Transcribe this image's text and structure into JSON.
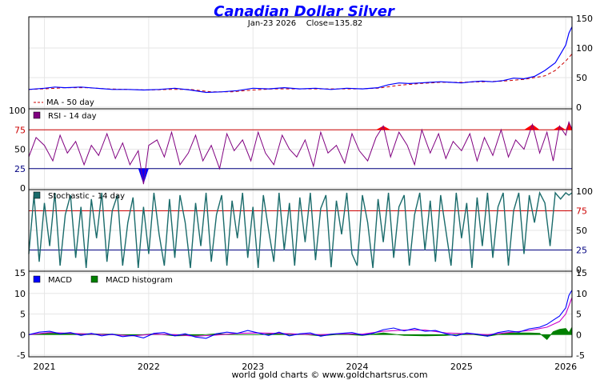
{
  "title": "Canadian Dollar Silver",
  "subtitle": {
    "date": "Jan-23  2026",
    "close_label": "Close=135.82"
  },
  "footer": "world gold charts © www.goldchartsrus.com",
  "x_axis": {
    "range": [
      2020.85,
      2026.06
    ],
    "year_labels": [
      "2021",
      "2022",
      "2023",
      "2024",
      "2025",
      "2026"
    ],
    "year_values": [
      2021,
      2022,
      2023,
      2024,
      2025,
      2026
    ]
  },
  "colors": {
    "price": "#0000ff",
    "ma": "#cc0000",
    "rsi": "#800080",
    "rsi_overbought": "#ff0000",
    "rsi_oversold": "#0000ff",
    "stoch": "#1a6b6b",
    "macd": "#0000ff",
    "macd_signal": "#cc00cc",
    "macd_hist": "#008000",
    "level_high": "#cc0000",
    "level_low": "#000080",
    "grid": "#e6e6e6"
  },
  "chart_data": [
    {
      "type": "line",
      "panel": "price",
      "title": "Canadian Dollar Silver",
      "y_ticks": [
        0,
        50,
        100,
        150
      ],
      "ylim": [
        0,
        150
      ],
      "legend": [
        {
          "name": "MA - 50 day",
          "color": "#cc0000",
          "style": "dashed"
        }
      ],
      "series": [
        {
          "name": "Price",
          "x": [
            2020.85,
            2021.0,
            2021.1,
            2021.2,
            2021.35,
            2021.5,
            2021.65,
            2021.8,
            2021.95,
            2022.1,
            2022.25,
            2022.4,
            2022.55,
            2022.7,
            2022.85,
            2023.0,
            2023.15,
            2023.3,
            2023.45,
            2023.6,
            2023.75,
            2023.9,
            2024.05,
            2024.2,
            2024.3,
            2024.4,
            2024.5,
            2024.6,
            2024.7,
            2024.8,
            2024.9,
            2025.0,
            2025.1,
            2025.2,
            2025.3,
            2025.4,
            2025.5,
            2025.6,
            2025.7,
            2025.8,
            2025.9,
            2025.95,
            2026.0,
            2026.03,
            2026.06
          ],
          "values": [
            30,
            32,
            34,
            33,
            34,
            32,
            30,
            30,
            29,
            30,
            32,
            29,
            25,
            26,
            28,
            32,
            31,
            33,
            31,
            32,
            30,
            32,
            31,
            33,
            38,
            41,
            40,
            41,
            42,
            43,
            42,
            41,
            43,
            44,
            43,
            45,
            49,
            48,
            52,
            62,
            75,
            90,
            105,
            125,
            135.82
          ]
        },
        {
          "name": "MA - 50 day",
          "x": [
            2020.85,
            2021.0,
            2021.2,
            2021.4,
            2021.6,
            2021.8,
            2022.0,
            2022.2,
            2022.4,
            2022.6,
            2022.8,
            2023.0,
            2023.2,
            2023.4,
            2023.6,
            2023.8,
            2024.0,
            2024.2,
            2024.4,
            2024.6,
            2024.8,
            2025.0,
            2025.2,
            2025.4,
            2025.6,
            2025.8,
            2025.9,
            2026.0,
            2026.06
          ],
          "values": [
            30,
            31,
            33,
            33,
            31,
            30,
            29,
            30,
            30,
            26,
            26,
            29,
            31,
            31,
            31,
            31,
            31,
            32,
            37,
            40,
            42,
            42,
            43,
            44,
            47,
            53,
            62,
            78,
            90
          ]
        }
      ]
    },
    {
      "type": "line",
      "panel": "rsi",
      "legend": [
        {
          "name": "RSI - 14 day",
          "color": "#800080"
        }
      ],
      "y_ticks": [
        0,
        25,
        50,
        75,
        100
      ],
      "ylim": [
        0,
        100
      ],
      "levels": [
        25,
        75
      ],
      "series": [
        {
          "name": "RSI - 14 day",
          "x": [
            2020.85,
            2020.92,
            2021.0,
            2021.08,
            2021.15,
            2021.22,
            2021.3,
            2021.38,
            2021.45,
            2021.52,
            2021.6,
            2021.68,
            2021.75,
            2021.82,
            2021.9,
            2021.95,
            2022.0,
            2022.08,
            2022.15,
            2022.22,
            2022.3,
            2022.38,
            2022.45,
            2022.52,
            2022.6,
            2022.68,
            2022.75,
            2022.82,
            2022.9,
            2022.98,
            2023.05,
            2023.12,
            2023.2,
            2023.28,
            2023.35,
            2023.42,
            2023.5,
            2023.58,
            2023.65,
            2023.72,
            2023.8,
            2023.88,
            2023.95,
            2024.02,
            2024.1,
            2024.18,
            2024.25,
            2024.32,
            2024.4,
            2024.48,
            2024.55,
            2024.62,
            2024.7,
            2024.78,
            2024.85,
            2024.92,
            2025.0,
            2025.08,
            2025.15,
            2025.22,
            2025.3,
            2025.38,
            2025.45,
            2025.52,
            2025.6,
            2025.68,
            2025.75,
            2025.82,
            2025.88,
            2025.94,
            2026.0,
            2026.03,
            2026.06
          ],
          "values": [
            40,
            65,
            55,
            35,
            68,
            45,
            60,
            30,
            55,
            42,
            70,
            38,
            58,
            30,
            48,
            5,
            55,
            62,
            40,
            72,
            30,
            45,
            68,
            35,
            55,
            25,
            70,
            48,
            62,
            35,
            72,
            45,
            30,
            68,
            50,
            40,
            62,
            28,
            72,
            45,
            55,
            32,
            70,
            48,
            35,
            65,
            80,
            40,
            72,
            55,
            30,
            75,
            45,
            70,
            38,
            60,
            48,
            70,
            35,
            65,
            42,
            75,
            40,
            62,
            50,
            82,
            45,
            72,
            35,
            80,
            68,
            85,
            76
          ]
        }
      ]
    },
    {
      "type": "line",
      "panel": "stochastic",
      "legend": [
        {
          "name": "Stochastic - 14 day",
          "color": "#1a6b6b"
        }
      ],
      "y_ticks": [
        0,
        25,
        50,
        75,
        100
      ],
      "ylim": [
        0,
        100
      ],
      "levels": [
        25,
        75
      ],
      "series": [
        {
          "name": "Stochastic - 14 day",
          "x": [
            2020.85,
            2020.9,
            2020.95,
            2021.0,
            2021.05,
            2021.1,
            2021.15,
            2021.2,
            2021.25,
            2021.3,
            2021.35,
            2021.4,
            2021.45,
            2021.5,
            2021.55,
            2021.6,
            2021.65,
            2021.7,
            2021.75,
            2021.8,
            2021.85,
            2021.9,
            2021.95,
            2022.0,
            2022.05,
            2022.1,
            2022.15,
            2022.2,
            2022.25,
            2022.3,
            2022.35,
            2022.4,
            2022.45,
            2022.5,
            2022.55,
            2022.6,
            2022.65,
            2022.7,
            2022.75,
            2022.8,
            2022.85,
            2022.9,
            2022.95,
            2023.0,
            2023.05,
            2023.1,
            2023.15,
            2023.2,
            2023.25,
            2023.3,
            2023.35,
            2023.4,
            2023.45,
            2023.5,
            2023.55,
            2023.6,
            2023.65,
            2023.7,
            2023.75,
            2023.8,
            2023.85,
            2023.9,
            2023.95,
            2024.0,
            2024.05,
            2024.1,
            2024.15,
            2024.2,
            2024.25,
            2024.3,
            2024.35,
            2024.4,
            2024.45,
            2024.5,
            2024.55,
            2024.6,
            2024.65,
            2024.7,
            2024.75,
            2024.8,
            2024.85,
            2024.9,
            2024.95,
            2025.0,
            2025.05,
            2025.1,
            2025.15,
            2025.2,
            2025.25,
            2025.3,
            2025.35,
            2025.4,
            2025.45,
            2025.5,
            2025.55,
            2025.6,
            2025.65,
            2025.7,
            2025.75,
            2025.8,
            2025.85,
            2025.9,
            2025.95,
            2026.0,
            2026.03,
            2026.06
          ],
          "values": [
            20,
            95,
            10,
            85,
            30,
            98,
            5,
            70,
            95,
            15,
            80,
            2,
            90,
            40,
            98,
            10,
            75,
            95,
            5,
            60,
            92,
            2,
            80,
            20,
            98,
            45,
            5,
            90,
            15,
            95,
            60,
            2,
            85,
            30,
            98,
            10,
            70,
            95,
            5,
            88,
            40,
            98,
            15,
            80,
            2,
            95,
            50,
            10,
            98,
            25,
            85,
            5,
            92,
            35,
            98,
            12,
            78,
            95,
            3,
            88,
            45,
            98,
            20,
            5,
            95,
            60,
            2,
            90,
            35,
            98,
            15,
            80,
            95,
            5,
            70,
            98,
            25,
            88,
            10,
            95,
            50,
            5,
            98,
            40,
            85,
            2,
            92,
            30,
            98,
            15,
            80,
            98,
            5,
            75,
            98,
            20,
            95,
            60,
            98,
            85,
            30,
            98,
            90,
            98,
            95,
            98
          ]
        }
      ]
    },
    {
      "type": "line",
      "panel": "macd",
      "legend": [
        {
          "name": "MACD",
          "color": "#0000ff"
        },
        {
          "name": "MACD histogram",
          "color": "#008000"
        }
      ],
      "y_ticks": [
        -5,
        0,
        5,
        10,
        15
      ],
      "ylim": [
        -5,
        15
      ],
      "series": [
        {
          "name": "MACD",
          "x": [
            2020.85,
            2020.95,
            2021.05,
            2021.15,
            2021.25,
            2021.35,
            2021.45,
            2021.55,
            2021.65,
            2021.75,
            2021.85,
            2021.95,
            2022.05,
            2022.15,
            2022.25,
            2022.35,
            2022.45,
            2022.55,
            2022.65,
            2022.75,
            2022.85,
            2022.95,
            2023.05,
            2023.15,
            2023.25,
            2023.35,
            2023.45,
            2023.55,
            2023.65,
            2023.75,
            2023.85,
            2023.95,
            2024.05,
            2024.15,
            2024.25,
            2024.35,
            2024.45,
            2024.55,
            2024.65,
            2024.75,
            2024.85,
            2024.95,
            2025.05,
            2025.15,
            2025.25,
            2025.35,
            2025.45,
            2025.55,
            2025.65,
            2025.75,
            2025.82,
            2025.88,
            2025.94,
            2026.0,
            2026.03,
            2026.06
          ],
          "values": [
            0,
            0.6,
            0.8,
            0.2,
            0.5,
            -0.2,
            0.3,
            -0.3,
            0.1,
            -0.5,
            -0.2,
            -0.8,
            0.3,
            0.5,
            -0.3,
            0.2,
            -0.6,
            -0.9,
            0.2,
            0.6,
            0.3,
            1.0,
            0.4,
            -0.2,
            0.6,
            -0.3,
            0.2,
            0.4,
            -0.4,
            0.1,
            0.3,
            0.5,
            -0.1,
            0.3,
            1.2,
            1.6,
            0.9,
            1.5,
            0.8,
            1.0,
            0.2,
            -0.3,
            0.4,
            0.1,
            -0.4,
            0.5,
            0.9,
            0.6,
            1.4,
            1.8,
            2.5,
            3.5,
            4.5,
            6.5,
            9.5,
            10.8
          ]
        },
        {
          "name": "Signal",
          "x": [
            2020.85,
            2021.05,
            2021.25,
            2021.45,
            2021.65,
            2021.85,
            2022.05,
            2022.25,
            2022.45,
            2022.65,
            2022.85,
            2023.05,
            2023.25,
            2023.45,
            2023.65,
            2023.85,
            2024.05,
            2024.25,
            2024.45,
            2024.65,
            2024.85,
            2025.05,
            2025.25,
            2025.45,
            2025.65,
            2025.82,
            2025.94,
            2026.0,
            2026.06
          ],
          "values": [
            0,
            0.5,
            0.3,
            0.1,
            0,
            -0.3,
            0.1,
            0,
            -0.4,
            -0.1,
            0.3,
            0.4,
            0.3,
            0.1,
            0,
            0.2,
            0.1,
            0.8,
            1.1,
            1.1,
            0.4,
            0.2,
            0,
            0.5,
            1.0,
            1.8,
            3.2,
            5.0,
            9.0
          ]
        },
        {
          "name": "MACD histogram",
          "x": [
            2020.85,
            2021.05,
            2021.25,
            2021.45,
            2021.65,
            2021.85,
            2022.05,
            2022.25,
            2022.45,
            2022.65,
            2022.85,
            2023.05,
            2023.25,
            2023.45,
            2023.65,
            2023.85,
            2024.05,
            2024.25,
            2024.45,
            2024.65,
            2024.85,
            2025.05,
            2025.25,
            2025.45,
            2025.65,
            2025.75,
            2025.82,
            2025.88,
            2025.94,
            2026.0,
            2026.03,
            2026.06
          ],
          "values": [
            0,
            0.3,
            0.2,
            0.2,
            0.1,
            -0.2,
            0.2,
            -0.3,
            -0.2,
            0.2,
            0,
            0,
            0.3,
            0.1,
            -0.3,
            0.1,
            -0.2,
            0.4,
            -0.2,
            -0.3,
            -0.2,
            0.2,
            -0.4,
            0.4,
            0.4,
            0.3,
            -1.2,
            0.7,
            1.3,
            1.5,
            0.5,
            1.8
          ]
        }
      ]
    }
  ]
}
